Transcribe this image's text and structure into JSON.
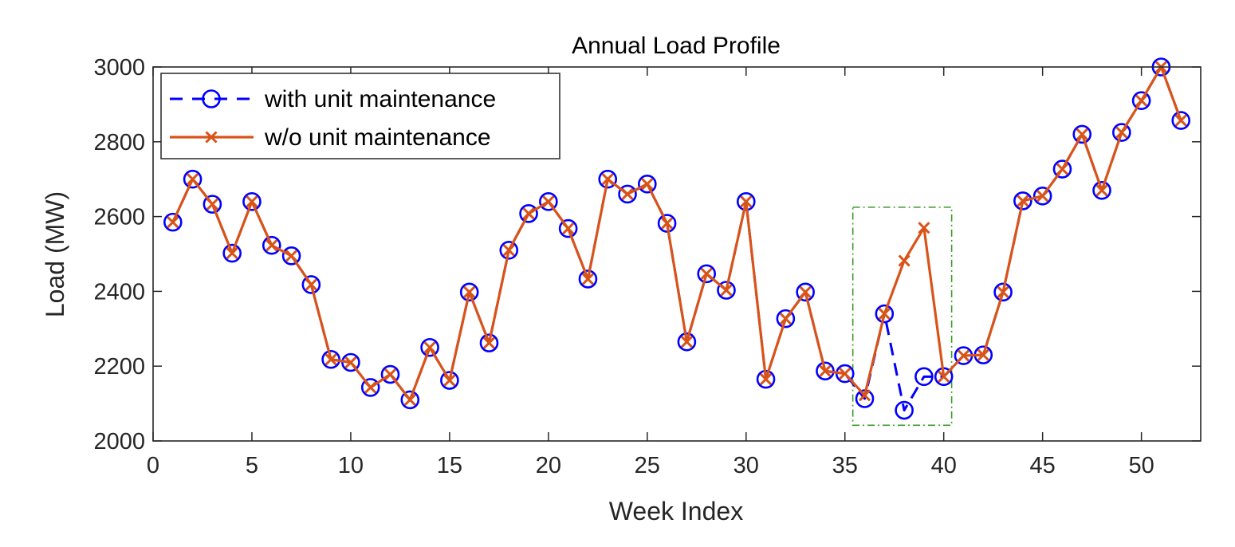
{
  "chart_data": {
    "type": "line",
    "title": "Annual Load Profile",
    "xlabel": "Week Index",
    "ylabel": "Load (MW)",
    "xlim": [
      0,
      53
    ],
    "ylim": [
      2000,
      3000
    ],
    "xticks": [
      0,
      5,
      10,
      15,
      20,
      25,
      30,
      35,
      40,
      45,
      50
    ],
    "yticks": [
      2000,
      2200,
      2400,
      2600,
      2800,
      3000
    ],
    "grid": false,
    "legend_position": "top-left",
    "x": [
      1,
      2,
      3,
      4,
      5,
      6,
      7,
      8,
      9,
      10,
      11,
      12,
      13,
      14,
      15,
      16,
      17,
      18,
      19,
      20,
      21,
      22,
      23,
      24,
      25,
      26,
      27,
      28,
      29,
      30,
      31,
      32,
      33,
      34,
      35,
      36,
      37,
      38,
      39,
      40,
      41,
      42,
      43,
      44,
      45,
      46,
      47,
      48,
      49,
      50,
      51,
      52
    ],
    "series": [
      {
        "name": "with unit maintenance",
        "color": "#0000ff",
        "line_style": "dashed",
        "marker": "circle",
        "values": [
          2585,
          2700,
          2633,
          2502,
          2640,
          2523,
          2495,
          2418,
          2218,
          2210,
          2143,
          2178,
          2110,
          2250,
          2162,
          2398,
          2262,
          2510,
          2608,
          2640,
          2568,
          2433,
          2700,
          2660,
          2687,
          2582,
          2265,
          2447,
          2403,
          2640,
          2165,
          2327,
          2398,
          2187,
          2180,
          2113,
          2340,
          2082,
          2172,
          2172,
          2228,
          2230,
          2398,
          2642,
          2655,
          2727,
          2820,
          2670,
          2825,
          2910,
          3000,
          2857
        ]
      },
      {
        "name": "w/o unit maintenance",
        "color": "#d95319",
        "line_style": "solid",
        "marker": "x",
        "values": [
          2585,
          2700,
          2633,
          2502,
          2640,
          2523,
          2495,
          2418,
          2218,
          2210,
          2143,
          2178,
          2110,
          2250,
          2162,
          2398,
          2262,
          2510,
          2608,
          2640,
          2568,
          2433,
          2700,
          2660,
          2687,
          2582,
          2265,
          2447,
          2403,
          2640,
          2165,
          2327,
          2398,
          2187,
          2180,
          2122,
          2340,
          2482,
          2570,
          2172,
          2228,
          2230,
          2398,
          2642,
          2655,
          2727,
          2820,
          2670,
          2825,
          2910,
          3000,
          2857
        ]
      }
    ],
    "annotations": [
      {
        "type": "dash-dot-box",
        "color": "#3a9a2a",
        "x_range": [
          35.4,
          40.4
        ],
        "y_range": [
          2042,
          2625
        ]
      }
    ]
  }
}
